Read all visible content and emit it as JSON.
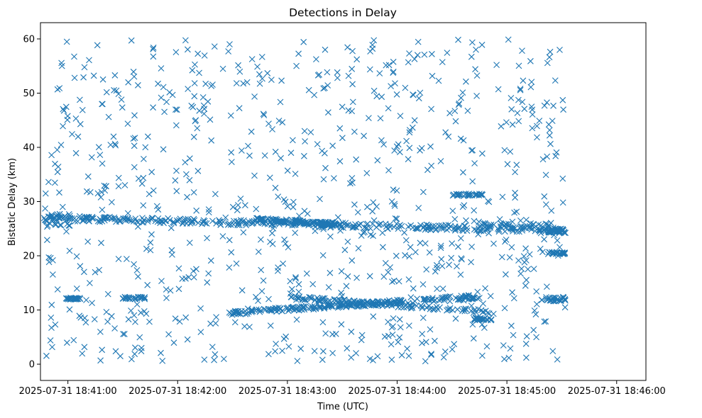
{
  "chart_data": {
    "type": "scatter",
    "title": "Detections in Delay",
    "xlabel": "Time (UTC)",
    "ylabel": "Bistatic Delay (km)",
    "xlim": [
      -15,
      316
    ],
    "ylim": [
      -3,
      63
    ],
    "xticks": [
      0,
      60,
      120,
      180,
      240,
      300
    ],
    "xtick_labels": [
      "2025-07-31 18:41:00",
      "2025-07-31 18:42:00",
      "2025-07-31 18:43:00",
      "2025-07-31 18:44:00",
      "2025-07-31 18:45:00",
      "2025-07-31 18:46:00"
    ],
    "yticks": [
      0,
      10,
      20,
      30,
      40,
      50,
      60
    ],
    "ytick_labels": [
      "0",
      "10",
      "20",
      "30",
      "40",
      "50",
      "60"
    ],
    "marker": "x",
    "color": "#1f77b4",
    "series": [
      {
        "name": "Detections",
        "x": [],
        "y": []
      }
    ],
    "tracks": [
      {
        "description": "upper track",
        "x_start": -13,
        "x_end": 275,
        "y_start": 27.0,
        "y_end": 24.6
      },
      {
        "description": "lower track",
        "x_start": 90,
        "x_end": 225,
        "y_start": 9.5,
        "y_end": 12.5
      },
      {
        "description": "secondary lower track",
        "x_start": 120,
        "x_end": 232,
        "y_start": 12.3,
        "y_end": 9.5
      }
    ],
    "notes": "Approximately 1500 'x' detections spread roughly uniformly over 0–60 km with denser horizontal tracks near 26 km and 10–12 km."
  }
}
